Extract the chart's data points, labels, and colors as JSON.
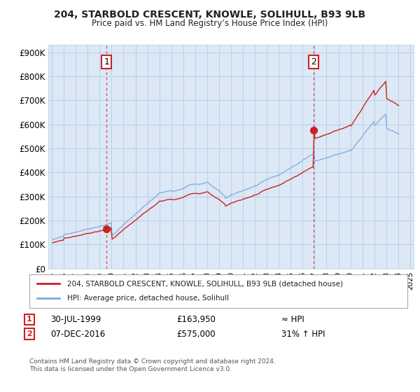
{
  "title1": "204, STARBOLD CRESCENT, KNOWLE, SOLIHULL, B93 9LB",
  "title2": "Price paid vs. HM Land Registry’s House Price Index (HPI)",
  "legend_line1": "204, STARBOLD CRESCENT, KNOWLE, SOLIHULL, B93 9LB (detached house)",
  "legend_line2": "HPI: Average price, detached house, Solihull",
  "annotation1_date": "30-JUL-1999",
  "annotation1_price": "£163,950",
  "annotation1_hpi": "≈ HPI",
  "annotation2_date": "07-DEC-2016",
  "annotation2_price": "£575,000",
  "annotation2_hpi": "31% ↑ HPI",
  "footer": "Contains HM Land Registry data © Crown copyright and database right 2024.\nThis data is licensed under the Open Government Licence v3.0.",
  "price_color": "#cc2222",
  "hpi_color": "#7aaadd",
  "annotation_color": "#cc2222",
  "plot_bg_color": "#dce8f5",
  "bg_color": "#ffffff",
  "grid_color": "#b8cfe8"
}
